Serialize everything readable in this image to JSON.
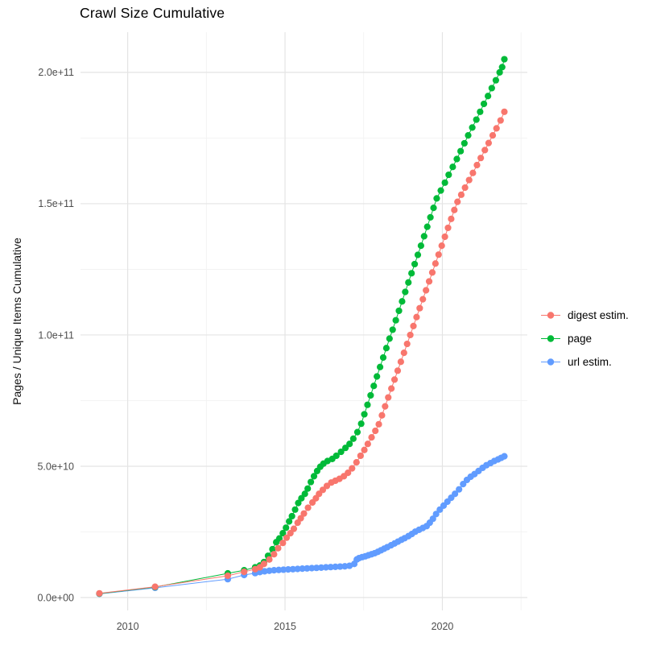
{
  "page": {
    "title": "Crawl Size Cumulative"
  },
  "y_axis": {
    "title": "Pages / Unique Items Cumulative",
    "tick_labels": [
      "0.0e+00",
      "5.0e+10",
      "1.0e+11",
      "1.5e+11",
      "2.0e+11"
    ]
  },
  "x_axis": {
    "tick_labels": [
      "2010",
      "2015",
      "2020"
    ]
  },
  "legend": {
    "position": "right",
    "items": [
      {
        "label": "digest estim.",
        "color": "#F8766D"
      },
      {
        "label": "page",
        "color": "#00BA38"
      },
      {
        "label": "url estim.",
        "color": "#619CFF"
      }
    ]
  },
  "chart_data": {
    "type": "scatter",
    "title": "Crawl Size Cumulative",
    "xlabel": "",
    "ylabel": "Pages / Unique Items Cumulative",
    "xlim": [
      2008.5,
      2022.7
    ],
    "ylim": [
      -4900000000.0,
      215300000000.0
    ],
    "grid": true,
    "legend_position": "right",
    "x_major_ticks": [
      2010,
      2015,
      2020
    ],
    "x_minor_ticks": [
      2012.5,
      2017.5,
      2022.5
    ],
    "x_tick_labels": [
      "2010",
      "2015",
      "2020"
    ],
    "y_major_ticks": [
      0,
      50000000000.0,
      100000000000.0,
      150000000000.0,
      200000000000.0
    ],
    "y_minor_ticks": [
      25000000000.0,
      75000000000.0,
      125000000000.0,
      175000000000.0
    ],
    "y_tick_labels": [
      "0.0e+00",
      "5.0e+10",
      "1.0e+11",
      "1.5e+11",
      "2.0e+11"
    ],
    "series": [
      {
        "name": "digest estim.",
        "color": "#F8766D",
        "points": [
          [
            2009.1,
            1600000000.0
          ],
          [
            2010.87,
            4100000000.0
          ],
          [
            2013.18,
            8300000000.0
          ],
          [
            2013.7,
            9800000000.0
          ],
          [
            2014.05,
            10800000000.0
          ],
          [
            2014.2,
            11500000000.0
          ],
          [
            2014.33,
            12800000000.0
          ],
          [
            2014.5,
            14500000000.0
          ],
          [
            2014.65,
            16500000000.0
          ],
          [
            2014.78,
            18800000000.0
          ],
          [
            2014.93,
            20800000000.0
          ],
          [
            2015.05,
            22800000000.0
          ],
          [
            2015.17,
            24500000000.0
          ],
          [
            2015.28,
            26200000000.0
          ],
          [
            2015.4,
            28500000000.0
          ],
          [
            2015.5,
            30200000000.0
          ],
          [
            2015.6,
            32000000000.0
          ],
          [
            2015.73,
            34200000000.0
          ],
          [
            2015.87,
            36200000000.0
          ],
          [
            2015.98,
            37800000000.0
          ],
          [
            2016.08,
            39500000000.0
          ],
          [
            2016.2,
            41000000000.0
          ],
          [
            2016.33,
            42500000000.0
          ],
          [
            2016.47,
            43800000000.0
          ],
          [
            2016.6,
            44500000000.0
          ],
          [
            2016.73,
            45200000000.0
          ],
          [
            2016.87,
            46200000000.0
          ],
          [
            2017.0,
            47500000000.0
          ],
          [
            2017.13,
            49200000000.0
          ],
          [
            2017.27,
            51500000000.0
          ],
          [
            2017.4,
            54000000000.0
          ],
          [
            2017.52,
            56200000000.0
          ],
          [
            2017.63,
            58500000000.0
          ],
          [
            2017.75,
            61000000000.0
          ],
          [
            2017.87,
            63500000000.0
          ],
          [
            2017.98,
            66000000000.0
          ],
          [
            2018.08,
            69400000000.0
          ],
          [
            2018.18,
            72800000000.0
          ],
          [
            2018.28,
            76200000000.0
          ],
          [
            2018.38,
            79600000000.0
          ],
          [
            2018.48,
            83000000000.0
          ],
          [
            2018.58,
            86400000000.0
          ],
          [
            2018.68,
            89800000000.0
          ],
          [
            2018.78,
            93200000000.0
          ],
          [
            2018.88,
            96600000000.0
          ],
          [
            2018.98,
            100000000000.0
          ],
          [
            2019.08,
            103400000000.0
          ],
          [
            2019.18,
            106800000000.0
          ],
          [
            2019.28,
            110200000000.0
          ],
          [
            2019.38,
            113600000000.0
          ],
          [
            2019.48,
            117000000000.0
          ],
          [
            2019.58,
            120400000000.0
          ],
          [
            2019.68,
            123800000000.0
          ],
          [
            2019.78,
            127200000000.0
          ],
          [
            2019.88,
            130600000000.0
          ],
          [
            2019.98,
            134000000000.0
          ],
          [
            2020.08,
            137400000000.0
          ],
          [
            2020.18,
            140800000000.0
          ],
          [
            2020.28,
            144200000000.0
          ],
          [
            2020.38,
            147600000000.0
          ],
          [
            2020.48,
            150700000000.0
          ],
          [
            2020.6,
            153400000000.0
          ],
          [
            2020.72,
            156100000000.0
          ],
          [
            2020.85,
            159000000000.0
          ],
          [
            2020.97,
            161700000000.0
          ],
          [
            2021.1,
            164700000000.0
          ],
          [
            2021.22,
            167400000000.0
          ],
          [
            2021.35,
            170400000000.0
          ],
          [
            2021.47,
            173100000000.0
          ],
          [
            2021.6,
            176000000000.0
          ],
          [
            2021.72,
            178700000000.0
          ],
          [
            2021.85,
            181700000000.0
          ],
          [
            2021.97,
            185000000000.0
          ]
        ]
      },
      {
        "name": "page",
        "color": "#00BA38",
        "points": [
          [
            2009.1,
            1500000000.0
          ],
          [
            2010.87,
            4000000000.0
          ],
          [
            2013.18,
            9200000000.0
          ],
          [
            2013.7,
            10400000000.0
          ],
          [
            2014.05,
            11500000000.0
          ],
          [
            2014.2,
            12200000000.0
          ],
          [
            2014.33,
            13500000000.0
          ],
          [
            2014.46,
            15900000000.0
          ],
          [
            2014.6,
            18400000000.0
          ],
          [
            2014.72,
            21100000000.0
          ],
          [
            2014.82,
            22500000000.0
          ],
          [
            2014.93,
            24500000000.0
          ],
          [
            2015.03,
            26600000000.0
          ],
          [
            2015.13,
            29000000000.0
          ],
          [
            2015.22,
            31000000000.0
          ],
          [
            2015.32,
            33500000000.0
          ],
          [
            2015.42,
            36000000000.0
          ],
          [
            2015.52,
            37800000000.0
          ],
          [
            2015.63,
            39500000000.0
          ],
          [
            2015.72,
            41500000000.0
          ],
          [
            2015.82,
            44000000000.0
          ],
          [
            2015.92,
            46200000000.0
          ],
          [
            2016.02,
            48200000000.0
          ],
          [
            2016.12,
            49800000000.0
          ],
          [
            2016.22,
            51000000000.0
          ],
          [
            2016.35,
            52000000000.0
          ],
          [
            2016.5,
            52800000000.0
          ],
          [
            2016.63,
            54000000000.0
          ],
          [
            2016.78,
            55500000000.0
          ],
          [
            2016.92,
            57000000000.0
          ],
          [
            2017.05,
            58500000000.0
          ],
          [
            2017.17,
            60500000000.0
          ],
          [
            2017.3,
            63000000000.0
          ],
          [
            2017.42,
            66200000000.0
          ],
          [
            2017.52,
            69800000000.0
          ],
          [
            2017.62,
            73400000000.0
          ],
          [
            2017.72,
            77000000000.0
          ],
          [
            2017.82,
            80600000000.0
          ],
          [
            2017.92,
            84200000000.0
          ],
          [
            2018.02,
            87800000000.0
          ],
          [
            2018.12,
            91400000000.0
          ],
          [
            2018.22,
            95000000000.0
          ],
          [
            2018.32,
            98600000000.0
          ],
          [
            2018.42,
            102000000000.0
          ],
          [
            2018.52,
            105600000000.0
          ],
          [
            2018.62,
            109200000000.0
          ],
          [
            2018.72,
            112800000000.0
          ],
          [
            2018.82,
            116400000000.0
          ],
          [
            2018.92,
            120000000000.0
          ],
          [
            2019.02,
            123500000000.0
          ],
          [
            2019.12,
            127000000000.0
          ],
          [
            2019.22,
            130500000000.0
          ],
          [
            2019.32,
            134000000000.0
          ],
          [
            2019.42,
            137600000000.0
          ],
          [
            2019.52,
            141200000000.0
          ],
          [
            2019.62,
            144800000000.0
          ],
          [
            2019.72,
            148400000000.0
          ],
          [
            2019.82,
            152000000000.0
          ],
          [
            2019.95,
            155000000000.0
          ],
          [
            2020.08,
            158000000000.0
          ],
          [
            2020.2,
            161000000000.0
          ],
          [
            2020.33,
            164000000000.0
          ],
          [
            2020.46,
            167000000000.0
          ],
          [
            2020.58,
            170000000000.0
          ],
          [
            2020.7,
            173000000000.0
          ],
          [
            2020.82,
            176000000000.0
          ],
          [
            2020.95,
            179000000000.0
          ],
          [
            2021.08,
            182000000000.0
          ],
          [
            2021.2,
            185000000000.0
          ],
          [
            2021.32,
            188000000000.0
          ],
          [
            2021.45,
            191000000000.0
          ],
          [
            2021.57,
            194000000000.0
          ],
          [
            2021.7,
            197000000000.0
          ],
          [
            2021.82,
            200000000000.0
          ],
          [
            2021.9,
            202000000000.0
          ],
          [
            2021.97,
            205000000000.0
          ]
        ]
      },
      {
        "name": "url estim.",
        "color": "#619CFF",
        "points": [
          [
            2009.1,
            1400000000.0
          ],
          [
            2010.87,
            3700000000.0
          ],
          [
            2013.18,
            7000000000.0
          ],
          [
            2013.7,
            8600000000.0
          ],
          [
            2014.05,
            9300000000.0
          ],
          [
            2014.2,
            9700000000.0
          ],
          [
            2014.35,
            10000000000.0
          ],
          [
            2014.5,
            10200000000.0
          ],
          [
            2014.65,
            10400000000.0
          ],
          [
            2014.8,
            10500000000.0
          ],
          [
            2014.95,
            10600000000.0
          ],
          [
            2015.1,
            10700000000.0
          ],
          [
            2015.25,
            10800000000.0
          ],
          [
            2015.4,
            10900000000.0
          ],
          [
            2015.55,
            11000000000.0
          ],
          [
            2015.7,
            11100000000.0
          ],
          [
            2015.85,
            11200000000.0
          ],
          [
            2016.0,
            11300000000.0
          ],
          [
            2016.15,
            11400000000.0
          ],
          [
            2016.3,
            11500000000.0
          ],
          [
            2016.45,
            11600000000.0
          ],
          [
            2016.6,
            11700000000.0
          ],
          [
            2016.75,
            11800000000.0
          ],
          [
            2016.9,
            11900000000.0
          ],
          [
            2017.05,
            12100000000.0
          ],
          [
            2017.2,
            12800000000.0
          ],
          [
            2017.28,
            14500000000.0
          ],
          [
            2017.35,
            15000000000.0
          ],
          [
            2017.45,
            15400000000.0
          ],
          [
            2017.55,
            15700000000.0
          ],
          [
            2017.65,
            16100000000.0
          ],
          [
            2017.75,
            16500000000.0
          ],
          [
            2017.85,
            16900000000.0
          ],
          [
            2017.95,
            17400000000.0
          ],
          [
            2018.05,
            18000000000.0
          ],
          [
            2018.15,
            18600000000.0
          ],
          [
            2018.25,
            19200000000.0
          ],
          [
            2018.37,
            19900000000.0
          ],
          [
            2018.48,
            20600000000.0
          ],
          [
            2018.59,
            21300000000.0
          ],
          [
            2018.7,
            22000000000.0
          ],
          [
            2018.8,
            22600000000.0
          ],
          [
            2018.92,
            23400000000.0
          ],
          [
            2019.03,
            24200000000.0
          ],
          [
            2019.14,
            25100000000.0
          ],
          [
            2019.26,
            25800000000.0
          ],
          [
            2019.38,
            26500000000.0
          ],
          [
            2019.5,
            27200000000.0
          ],
          [
            2019.6,
            28500000000.0
          ],
          [
            2019.7,
            30000000000.0
          ],
          [
            2019.8,
            31800000000.0
          ],
          [
            2019.92,
            33500000000.0
          ],
          [
            2020.04,
            35000000000.0
          ],
          [
            2020.16,
            36500000000.0
          ],
          [
            2020.28,
            38000000000.0
          ],
          [
            2020.4,
            39500000000.0
          ],
          [
            2020.53,
            41200000000.0
          ],
          [
            2020.66,
            43200000000.0
          ],
          [
            2020.78,
            44800000000.0
          ],
          [
            2020.9,
            46000000000.0
          ],
          [
            2021.02,
            47000000000.0
          ],
          [
            2021.15,
            48200000000.0
          ],
          [
            2021.28,
            49400000000.0
          ],
          [
            2021.4,
            50400000000.0
          ],
          [
            2021.53,
            51200000000.0
          ],
          [
            2021.65,
            52000000000.0
          ],
          [
            2021.77,
            52600000000.0
          ],
          [
            2021.87,
            53200000000.0
          ],
          [
            2021.97,
            53800000000.0
          ]
        ]
      }
    ]
  }
}
